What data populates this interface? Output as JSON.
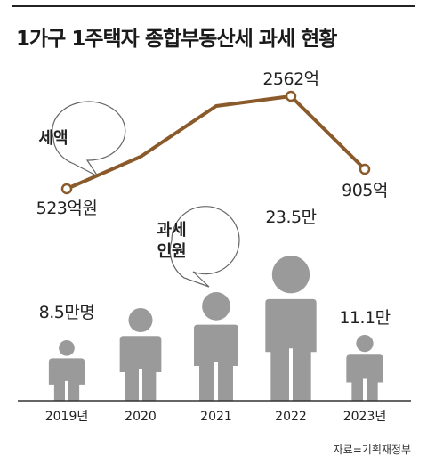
{
  "title": "1가구 1주택자 종합부동산세 과세 현황",
  "source": "자료=기획재정부",
  "bubbles": {
    "tax": {
      "lines": [
        "세액"
      ]
    },
    "people": {
      "lines": [
        "과세",
        "인원"
      ]
    }
  },
  "colors": {
    "line": "#8b5a2b",
    "figure": "#9a9a9a",
    "bubble_border": "#666666",
    "baseline": "#333333"
  },
  "icons": {
    "figure": "person-icon"
  },
  "chart_data": [
    {
      "type": "line",
      "name": "tax-amount",
      "categories": [
        "2019년",
        "2020",
        "2021",
        "2022",
        "2023년"
      ],
      "values": [
        523,
        null,
        null,
        2562,
        905
      ],
      "data_labels": [
        "523억원",
        "",
        "",
        "2562억",
        "905억"
      ],
      "unit": "억원",
      "note": "2020 and 2021 values are not labeled in the figure"
    },
    {
      "type": "bar",
      "name": "taxpayers",
      "categories": [
        "2019년",
        "2020",
        "2021",
        "2022",
        "2023년"
      ],
      "values": [
        8.5,
        null,
        null,
        23.5,
        11.1
      ],
      "data_labels": [
        "8.5만명",
        "",
        "",
        "23.5만",
        "11.1만"
      ],
      "unit": "만명"
    }
  ]
}
